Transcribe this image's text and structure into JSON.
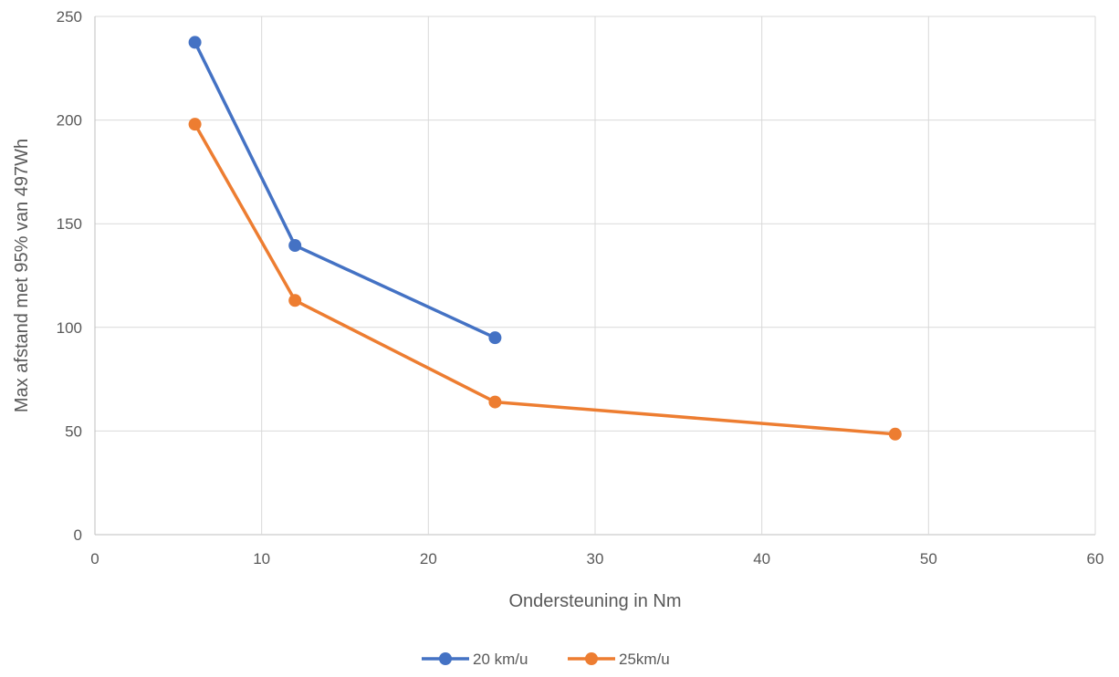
{
  "chart_data": {
    "type": "line",
    "title": "",
    "xlabel": "Ondersteuning in Nm",
    "ylabel": "Max afstand met 95% van 497Wh",
    "xlim": [
      0,
      60
    ],
    "ylim": [
      0,
      250
    ],
    "xticks": [
      0,
      10,
      20,
      30,
      40,
      50,
      60
    ],
    "yticks": [
      0,
      50,
      100,
      150,
      200,
      250
    ],
    "grid": true,
    "legend_position": "bottom",
    "series": [
      {
        "name": "20 km/u",
        "color": "#4472c4",
        "x": [
          6,
          12,
          24
        ],
        "y": [
          237.5,
          139.5,
          95
        ]
      },
      {
        "name": "25km/u",
        "color": "#ed7d31",
        "x": [
          6,
          12,
          24,
          48
        ],
        "y": [
          198,
          113,
          64,
          48.5
        ]
      }
    ]
  }
}
